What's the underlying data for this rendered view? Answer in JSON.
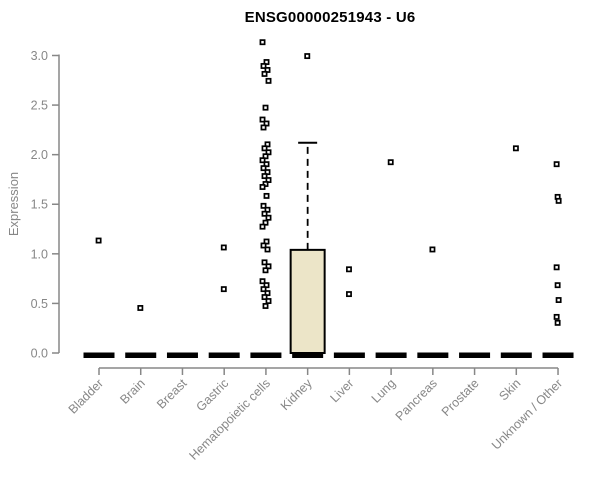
{
  "chart_data": {
    "type": "boxplot",
    "title": "ENSG00000251943 - U6",
    "ylabel": "Expression",
    "xlabel": "",
    "ylim": [
      0.0,
      3.2
    ],
    "yticks": [
      0.0,
      0.5,
      1.0,
      1.5,
      2.0,
      2.5,
      3.0
    ],
    "grid": false,
    "legend": "none",
    "axis_color": "#878787",
    "box_fill_color": "#ECE5C8",
    "box_border_color": "#000000",
    "point_color": "#000000",
    "categories": [
      "Bladder",
      "Brain",
      "Breast",
      "Gastric",
      "Hematopoietic cells",
      "Kidney",
      "Liver",
      "Lung",
      "Pancreas",
      "Prostate",
      "Skin",
      "Unknown / Other"
    ],
    "series": [
      {
        "category": "Bladder",
        "q1": 0,
        "median": 0,
        "q3": 0,
        "whisker_low": 0,
        "whisker_high": 0,
        "outliers": [
          1.13
        ]
      },
      {
        "category": "Brain",
        "q1": 0,
        "median": 0,
        "q3": 0,
        "whisker_low": 0,
        "whisker_high": 0,
        "outliers": [
          0.45
        ]
      },
      {
        "category": "Breast",
        "q1": 0,
        "median": 0,
        "q3": 0,
        "whisker_low": 0,
        "whisker_high": 0,
        "outliers": []
      },
      {
        "category": "Gastric",
        "q1": 0,
        "median": 0,
        "q3": 0,
        "whisker_low": 0,
        "whisker_high": 0,
        "outliers": [
          1.06,
          0.64
        ]
      },
      {
        "category": "Hematopoietic cells",
        "q1": 0,
        "median": 0,
        "q3": 0,
        "whisker_low": 0,
        "whisker_high": 0,
        "outliers": [
          3.13,
          2.93,
          2.89,
          2.85,
          2.81,
          2.74,
          2.47,
          2.35,
          2.31,
          2.27,
          2.1,
          2.06,
          2.02,
          1.98,
          1.94,
          1.9,
          1.86,
          1.82,
          1.78,
          1.74,
          1.7,
          1.67,
          1.58,
          1.48,
          1.44,
          1.4,
          1.36,
          1.31,
          1.27,
          1.12,
          1.08,
          1.04,
          0.91,
          0.87,
          0.83,
          0.72,
          0.68,
          0.64,
          0.6,
          0.56,
          0.52,
          0.47
        ]
      },
      {
        "category": "Kidney",
        "q1": 0,
        "median": 0,
        "q3": 1.04,
        "whisker_low": 0,
        "whisker_high": 2.12,
        "outliers": [
          2.99
        ]
      },
      {
        "category": "Liver",
        "q1": 0,
        "median": 0,
        "q3": 0,
        "whisker_low": 0,
        "whisker_high": 0,
        "outliers": [
          0.84,
          0.59
        ]
      },
      {
        "category": "Lung",
        "q1": 0,
        "median": 0,
        "q3": 0,
        "whisker_low": 0,
        "whisker_high": 0,
        "outliers": [
          1.92
        ]
      },
      {
        "category": "Pancreas",
        "q1": 0,
        "median": 0,
        "q3": 0,
        "whisker_low": 0,
        "whisker_high": 0,
        "outliers": [
          1.04
        ]
      },
      {
        "category": "Prostate",
        "q1": 0,
        "median": 0,
        "q3": 0,
        "whisker_low": 0,
        "whisker_high": 0,
        "outliers": []
      },
      {
        "category": "Skin",
        "q1": 0,
        "median": 0,
        "q3": 0,
        "whisker_low": 0,
        "whisker_high": 0,
        "outliers": [
          2.06
        ]
      },
      {
        "category": "Unknown / Other",
        "q1": 0,
        "median": 0,
        "q3": 0,
        "whisker_low": 0,
        "whisker_high": 0,
        "outliers": [
          1.9,
          1.57,
          1.53,
          0.86,
          0.68,
          0.53,
          0.36,
          0.3
        ]
      }
    ]
  }
}
